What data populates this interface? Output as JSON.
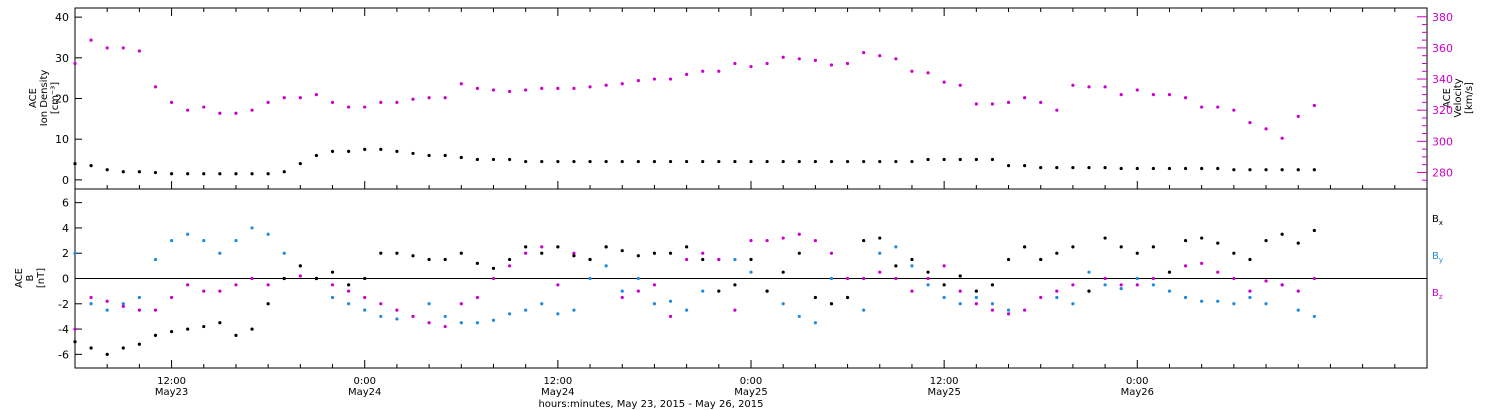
{
  "chart_data": [
    {
      "type": "scatter",
      "panel": "plasma",
      "ylabel_left": [
        "ACE",
        "Ion Density",
        "[cm⁻³]"
      ],
      "ylabel_right": [
        "ACE",
        "Velocity",
        "[km/s]"
      ],
      "ylim_left": [
        -2,
        42
      ],
      "ylim_right": [
        270,
        385
      ],
      "yticks_left": [
        "0",
        "10",
        "20",
        "30",
        "40"
      ],
      "yticks_right": [
        "280",
        "300",
        "320",
        "340",
        "360",
        "380"
      ],
      "colors": {
        "density": "#000000",
        "velocity": "#cc00cc"
      },
      "series": [
        {
          "axis": "left",
          "x_hours": [
            0,
            1,
            2,
            3,
            4,
            5,
            6,
            7,
            8,
            9,
            10,
            11,
            12,
            13,
            14,
            15,
            16,
            17,
            18,
            19,
            20,
            21,
            22,
            23,
            24,
            25,
            26,
            27,
            28,
            29,
            30,
            31,
            32,
            33,
            34,
            35,
            36,
            37,
            38,
            39,
            40,
            41,
            42,
            43,
            44,
            45,
            46,
            47,
            48,
            49,
            50,
            51,
            52,
            53,
            54,
            55,
            56,
            57,
            58,
            59,
            60,
            61,
            62,
            63,
            64,
            65,
            66,
            67,
            68,
            69,
            70,
            71,
            72,
            73,
            74,
            75,
            76,
            77
          ],
          "values": [
            4,
            3.5,
            2.5,
            2,
            2,
            1.8,
            1.5,
            1.5,
            1.5,
            1.5,
            1.5,
            1.5,
            1.5,
            2,
            4,
            6,
            7,
            7,
            7.5,
            7.5,
            7,
            6.5,
            6,
            6,
            5.5,
            5,
            5,
            5,
            4.5,
            4.5,
            4.5,
            4.5,
            4.5,
            4.5,
            4.5,
            4.5,
            4.5,
            4.5,
            4.5,
            4.5,
            4.5,
            4.5,
            4.5,
            4.5,
            4.5,
            4.5,
            4.5,
            4.5,
            4.5,
            4.5,
            4.5,
            4.5,
            4.5,
            5,
            5,
            5,
            5,
            5,
            3.5,
            3.5,
            3,
            3,
            3,
            3,
            3,
            2.8,
            2.8,
            2.8,
            2.8,
            2.8,
            2.8,
            2.8,
            2.5,
            2.5,
            2.5,
            2.5,
            2.5,
            2.5
          ]
        },
        {
          "axis": "right",
          "x_hours": [
            0,
            1,
            2,
            3,
            4,
            5,
            6,
            7,
            8,
            9,
            10,
            11,
            12,
            13,
            14,
            15,
            16,
            17,
            18,
            19,
            20,
            21,
            22,
            23,
            24,
            25,
            26,
            27,
            28,
            29,
            30,
            31,
            32,
            33,
            34,
            35,
            36,
            37,
            38,
            39,
            40,
            41,
            42,
            43,
            44,
            45,
            46,
            47,
            48,
            49,
            50,
            51,
            52,
            53,
            54,
            55,
            56,
            57,
            58,
            59,
            60,
            61,
            62,
            63,
            64,
            65,
            66,
            67,
            68,
            69,
            70,
            71,
            72,
            73,
            74,
            75,
            76,
            77
          ],
          "values": [
            350,
            365,
            360,
            360,
            358,
            335,
            325,
            320,
            322,
            318,
            318,
            320,
            325,
            328,
            328,
            330,
            325,
            322,
            322,
            325,
            325,
            327,
            328,
            328,
            337,
            334,
            333,
            332,
            333,
            334,
            334,
            334,
            335,
            336,
            337,
            339,
            340,
            340,
            343,
            345,
            345,
            350,
            348,
            350,
            354,
            353,
            352,
            349,
            350,
            357,
            355,
            353,
            345,
            344,
            338,
            336,
            324,
            324,
            325,
            328,
            325,
            320,
            336,
            335,
            335,
            330,
            333,
            330,
            330,
            328,
            322,
            322,
            320,
            312,
            308,
            302,
            316,
            323
          ]
        }
      ]
    },
    {
      "type": "scatter",
      "panel": "magnetic",
      "ylabel_left": [
        "ACE",
        "B",
        "[nT]"
      ],
      "ylim": [
        -7,
        7
      ],
      "yticks": [
        "-6",
        "-4",
        "-2",
        "0",
        "2",
        "4",
        "6"
      ],
      "xlim_hours": [
        0,
        84
      ],
      "xticks": [
        {
          "hours": 6,
          "time": "12:00",
          "date": "May23"
        },
        {
          "hours": 18,
          "time": "0:00",
          "date": "May24"
        },
        {
          "hours": 30,
          "time": "12:00",
          "date": "May24"
        },
        {
          "hours": 42,
          "time": "0:00",
          "date": "May25"
        },
        {
          "hours": 54,
          "time": "12:00",
          "date": "May25"
        },
        {
          "hours": 66,
          "time": "0:00",
          "date": "May26"
        }
      ],
      "xlabel": "hours:minutes, May 23, 2015 - May 26, 2015",
      "legend_placement": "right",
      "series": [
        {
          "name": "Bx",
          "label_main": "B",
          "label_sub": "x",
          "color": "#000000",
          "x_hours": [
            0,
            1,
            2,
            3,
            4,
            5,
            6,
            7,
            8,
            9,
            10,
            11,
            12,
            13,
            14,
            15,
            16,
            17,
            18,
            19,
            20,
            21,
            22,
            23,
            24,
            25,
            26,
            27,
            28,
            29,
            30,
            31,
            32,
            33,
            34,
            35,
            36,
            37,
            38,
            39,
            40,
            41,
            42,
            43,
            44,
            45,
            46,
            47,
            48,
            49,
            50,
            51,
            52,
            53,
            54,
            55,
            56,
            57,
            58,
            59,
            60,
            61,
            62,
            63,
            64,
            65,
            66,
            67,
            68,
            69,
            70,
            71,
            72,
            73,
            74,
            75,
            76,
            77
          ],
          "values": [
            -5,
            -5.5,
            -6,
            -5.5,
            -5.2,
            -4.5,
            -4.2,
            -4,
            -3.8,
            -3.5,
            -4.5,
            -4,
            -2,
            0,
            1,
            0,
            0.5,
            -0.5,
            0,
            2,
            2,
            1.8,
            1.5,
            1.5,
            2,
            1.2,
            0.8,
            1.5,
            2.5,
            2,
            2.5,
            1.8,
            1.5,
            2.5,
            2.2,
            1.8,
            2,
            2,
            2.5,
            1.5,
            -1,
            -0.5,
            1.5,
            -1,
            0.5,
            2,
            -1.5,
            -2,
            -1.5,
            3,
            3.2,
            1,
            1.5,
            0.5,
            -0.5,
            0.2,
            -1,
            -0.5,
            1.5,
            2.5,
            1.5,
            2,
            2.5,
            -1,
            3.2,
            2.5,
            2,
            2.5,
            0.5,
            3,
            3.2,
            2.8,
            2,
            1.5,
            3,
            3.5,
            2.8,
            3.8
          ]
        },
        {
          "name": "By",
          "label_main": "B",
          "label_sub": "y",
          "color": "#1f8be0",
          "x_hours": [
            0,
            1,
            2,
            3,
            4,
            5,
            6,
            7,
            8,
            9,
            10,
            11,
            12,
            13,
            14,
            15,
            16,
            17,
            18,
            19,
            20,
            21,
            22,
            23,
            24,
            25,
            26,
            27,
            28,
            29,
            30,
            31,
            32,
            33,
            34,
            35,
            36,
            37,
            38,
            39,
            40,
            41,
            42,
            43,
            44,
            45,
            46,
            47,
            48,
            49,
            50,
            51,
            52,
            53,
            54,
            55,
            56,
            57,
            58,
            59,
            60,
            61,
            62,
            63,
            64,
            65,
            66,
            67,
            68,
            69,
            70,
            71,
            72,
            73,
            74,
            75,
            76,
            77
          ],
          "values": [
            2,
            -2,
            -2.5,
            -2,
            -1.5,
            1.5,
            3,
            3.5,
            3,
            2,
            3,
            4,
            3.5,
            2,
            1,
            0,
            -1.5,
            -2,
            -2.5,
            -3,
            -3.2,
            -3,
            -2,
            -3,
            -3.5,
            -3.5,
            -3.3,
            -2.8,
            -2.5,
            -2,
            -2.8,
            -2.5,
            0,
            1,
            -1,
            0,
            -2,
            -1.8,
            -2.5,
            -1,
            1.5,
            1.5,
            0.5,
            -1,
            -2,
            -3,
            -3.5,
            0,
            -1.5,
            -2.5,
            2,
            2.5,
            1,
            -0.5,
            -1.5,
            -2,
            -1.5,
            -2,
            -2.5,
            2.5,
            1.5,
            -1.5,
            -2,
            0.5,
            -0.5,
            -0.8,
            0,
            -0.5,
            -1,
            -1.5,
            -1.8,
            -1.8,
            -2,
            -1.5,
            -2,
            -0.5,
            -2.5,
            -3
          ]
        },
        {
          "name": "Bz",
          "label_main": "B",
          "label_sub": "z",
          "color": "#cc00cc",
          "x_hours": [
            0,
            1,
            2,
            3,
            4,
            5,
            6,
            7,
            8,
            9,
            10,
            11,
            12,
            13,
            14,
            15,
            16,
            17,
            18,
            19,
            20,
            21,
            22,
            23,
            24,
            25,
            26,
            27,
            28,
            29,
            30,
            31,
            32,
            33,
            34,
            35,
            36,
            37,
            38,
            39,
            40,
            41,
            42,
            43,
            44,
            45,
            46,
            47,
            48,
            49,
            50,
            51,
            52,
            53,
            54,
            55,
            56,
            57,
            58,
            59,
            60,
            61,
            62,
            63,
            64,
            65,
            66,
            67,
            68,
            69,
            70,
            71,
            72,
            73,
            74,
            75,
            76,
            77
          ],
          "values": [
            -4,
            -1.5,
            -1.8,
            -2.2,
            -2.5,
            -2.5,
            -1.5,
            -0.5,
            -1,
            -1,
            -0.5,
            0,
            -0.5,
            0,
            0.2,
            0,
            -0.5,
            -1,
            -1.5,
            -2,
            -2.5,
            -3,
            -3.5,
            -3.8,
            -2,
            -1.5,
            0,
            1,
            2,
            2.5,
            -0.5,
            2,
            1.5,
            2.5,
            -1.5,
            -1,
            -0.5,
            -3,
            1.5,
            2,
            1.5,
            -2.5,
            3,
            3,
            3.2,
            3.5,
            3,
            2,
            0,
            0,
            0.5,
            0,
            -1,
            0,
            1,
            -1,
            -2,
            -2.5,
            -2.8,
            -2.5,
            -1.5,
            -1,
            -0.5,
            -1,
            0,
            -0.5,
            -0.5,
            0,
            0.5,
            1,
            1.2,
            0.5,
            0,
            -1,
            -0.2,
            -0.5,
            -1,
            0
          ]
        }
      ]
    }
  ]
}
